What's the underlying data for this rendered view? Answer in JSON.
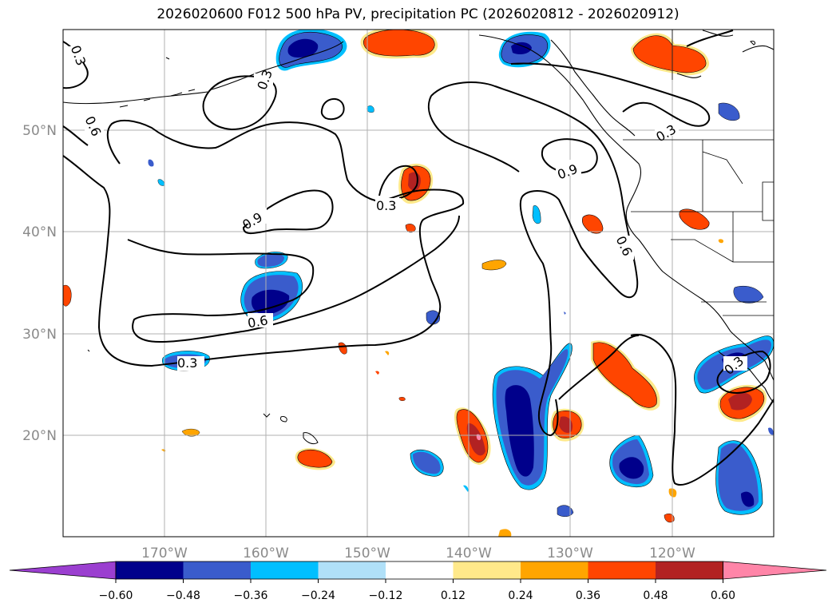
{
  "title": "2026020600 F012 500 hPa PV, precipitation PC (2026020812 - 2026020912)",
  "longitude_labels": [
    "170°W",
    "160°W",
    "150°W",
    "140°W",
    "130°W",
    "120°W"
  ],
  "latitude_labels": [
    "50°N",
    "40°N",
    "30°N",
    "20°N"
  ],
  "contour_labels": [
    "0.3",
    "0.3",
    "0.6",
    "0.3",
    "0.9",
    "0.3",
    "0.3",
    "0.9",
    "0.6",
    "0.6",
    "0.3"
  ],
  "colorbar": {
    "tick_labels": [
      "−0.60",
      "−0.48",
      "−0.36",
      "−0.24",
      "−0.12",
      "0.12",
      "0.24",
      "0.36",
      "0.48",
      "0.60"
    ],
    "colors": [
      "#9b3fd0",
      "#00008b",
      "#3a5ccc",
      "#00bfff",
      "#b0e0f8",
      "#ffffff",
      "#ffe98a",
      "#ffa500",
      "#ff4500",
      "#b22222",
      "#ff85a8"
    ]
  },
  "colors": {
    "contour": "#000000",
    "coast": "#000000",
    "grid": "#b0b0b0",
    "axis_label": "#8a8a8a"
  }
}
